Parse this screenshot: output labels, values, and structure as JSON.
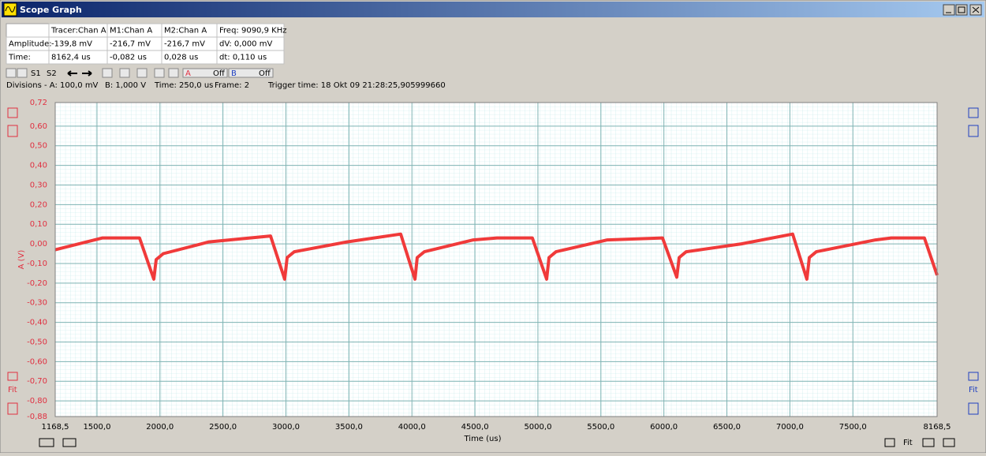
{
  "window": {
    "title": "Scope Graph"
  },
  "info_table": {
    "rows": [
      [
        "Tracer:Chan A",
        "M1:Chan A",
        "M2:Chan A",
        "Freq: 9090,9 KHz"
      ],
      [
        "Amplitude:",
        "-139,8 mV",
        "-216,7 mV",
        "-216,7 mV",
        "dV: 0,000 mV"
      ],
      [
        "Time:",
        "8162,4 us",
        "-0,082 us",
        "0,028 us",
        "dt:  0,110 us"
      ]
    ]
  },
  "toolbar": {
    "s1": "S1",
    "s2": "S2",
    "a": "A",
    "a_state": "Off",
    "b": "B",
    "b_state": "Off"
  },
  "status": {
    "divisions": "Divisions -  A: 100,0 mV",
    "b": "B: 1,000 V",
    "time": "Time: 250,0 us",
    "frame": "Frame: 2",
    "trigger": "Trigger time: 18 Okt 09 21:28:25,905999660"
  },
  "side": {
    "fit_left": "Fit",
    "fit_right": "Fit",
    "fit_bottom": "Fit"
  },
  "chart_data": {
    "type": "line",
    "ylabel": "A (V)",
    "xlabel": "Time (us)",
    "color": "#f03a3a",
    "grid": true,
    "x": [
      1168.5,
      1544,
      1838,
      1951,
      1970,
      2026,
      2389,
      2878,
      2990,
      3009,
      3066,
      3485,
      3911,
      4024,
      4042,
      4099,
      4487,
      4675,
      4956,
      5069,
      5088,
      5144,
      5551,
      5989,
      6102,
      6121,
      6177,
      6615,
      7022,
      7135,
      7154,
      7210,
      7680,
      7805,
      8068,
      8168.5
    ],
    "values": [
      -0.03,
      0.03,
      0.03,
      -0.18,
      -0.08,
      -0.05,
      0.01,
      0.04,
      -0.18,
      -0.07,
      -0.04,
      0.01,
      0.05,
      -0.18,
      -0.07,
      -0.04,
      0.02,
      0.03,
      0.03,
      -0.18,
      -0.07,
      -0.04,
      0.02,
      0.03,
      -0.17,
      -0.07,
      -0.04,
      0.0,
      0.05,
      -0.18,
      -0.07,
      -0.04,
      0.02,
      0.03,
      0.03,
      -0.16
    ],
    "xlim": [
      1168.5,
      8168.5
    ],
    "xticks": [
      {
        "value": 1168.5,
        "label": "1168,5"
      },
      {
        "value": 1500,
        "label": "1500,0"
      },
      {
        "value": 2000,
        "label": "2000,0"
      },
      {
        "value": 2500,
        "label": "2500,0"
      },
      {
        "value": 3000,
        "label": "3000,0"
      },
      {
        "value": 3500,
        "label": "3500,0"
      },
      {
        "value": 4000,
        "label": "4000,0"
      },
      {
        "value": 4500,
        "label": "4500,0"
      },
      {
        "value": 5000,
        "label": "5000,0"
      },
      {
        "value": 5500,
        "label": "5500,0"
      },
      {
        "value": 6000,
        "label": "6000,0"
      },
      {
        "value": 6500,
        "label": "6500,0"
      },
      {
        "value": 7000,
        "label": "7000,0"
      },
      {
        "value": 7500,
        "label": "7500,0"
      },
      {
        "value": 8168.5,
        "label": "8168,5"
      }
    ],
    "ylim": [
      -0.88,
      0.72
    ],
    "yticks": [
      {
        "value": 0.72,
        "label": "0,72"
      },
      {
        "value": 0.6,
        "label": "0,60"
      },
      {
        "value": 0.5,
        "label": "0,50"
      },
      {
        "value": 0.4,
        "label": "0,40"
      },
      {
        "value": 0.3,
        "label": "0,30"
      },
      {
        "value": 0.2,
        "label": "0,20"
      },
      {
        "value": 0.1,
        "label": "0,10"
      },
      {
        "value": 0,
        "label": "0,00"
      },
      {
        "value": -0.1,
        "label": "-0,10"
      },
      {
        "value": -0.2,
        "label": "-0,20"
      },
      {
        "value": -0.3,
        "label": "-0,30"
      },
      {
        "value": -0.4,
        "label": "-0,40"
      },
      {
        "value": -0.5,
        "label": "-0,50"
      },
      {
        "value": -0.6,
        "label": "-0,60"
      },
      {
        "value": -0.7,
        "label": "-0,70"
      },
      {
        "value": -0.8,
        "label": "-0,80"
      },
      {
        "value": -0.88,
        "label": "-0,88"
      }
    ]
  }
}
